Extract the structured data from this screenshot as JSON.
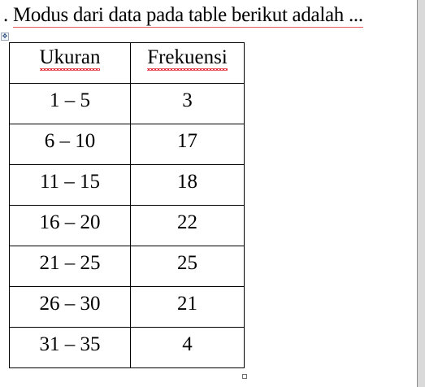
{
  "question": {
    "marker": ".",
    "text": "Modus dari data pada table berikut adalah ..."
  },
  "table": {
    "headers": [
      "Ukuran",
      "Frekuensi"
    ],
    "rows": [
      [
        "1 – 5",
        "3"
      ],
      [
        "6 – 10",
        "17"
      ],
      [
        "11 – 15",
        "18"
      ],
      [
        "16 – 20",
        "22"
      ],
      [
        "21 – 25",
        "25"
      ],
      [
        "26 – 30",
        "21"
      ],
      [
        "31 – 35",
        "4"
      ]
    ]
  },
  "icons": {
    "move_handle": "table-move-icon",
    "resize_handle": "table-resize-icon"
  }
}
